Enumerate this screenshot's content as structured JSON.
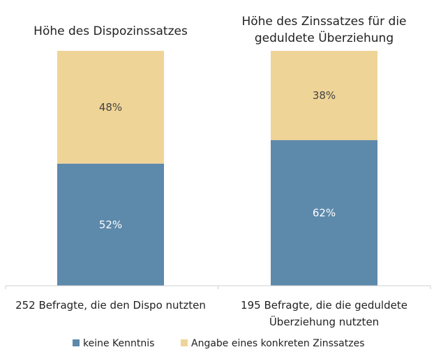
{
  "chart_data": {
    "type": "bar",
    "stacked": true,
    "percent": true,
    "ylim": [
      0,
      100
    ],
    "categories": [
      "252 Befragte, die den Dispo nutzten",
      "195 Befragte, die die geduldete Überziehung nutzten"
    ],
    "category_lines": [
      [
        "252 Befragte, die den Dispo nutzten"
      ],
      [
        "195 Befragte, die die geduldete",
        "Überziehung nutzten"
      ]
    ],
    "panel_titles": [
      [
        "Höhe des Dispozinssatzes"
      ],
      [
        "Höhe des Zinssatzes für die",
        "geduldete Überziehung"
      ]
    ],
    "series": [
      {
        "name": "keine Kenntnis",
        "color": "#5d89ab",
        "label_color": "#ffffff",
        "values": [
          52,
          62
        ],
        "labels": [
          "52%",
          "62%"
        ]
      },
      {
        "name": "Angabe eines konkreten Zinssatzes",
        "color": "#efd497",
        "label_color": "#444444",
        "values": [
          48,
          38
        ],
        "labels": [
          "48%",
          "38%"
        ]
      }
    ],
    "legend_position": "bottom",
    "grid": false
  }
}
